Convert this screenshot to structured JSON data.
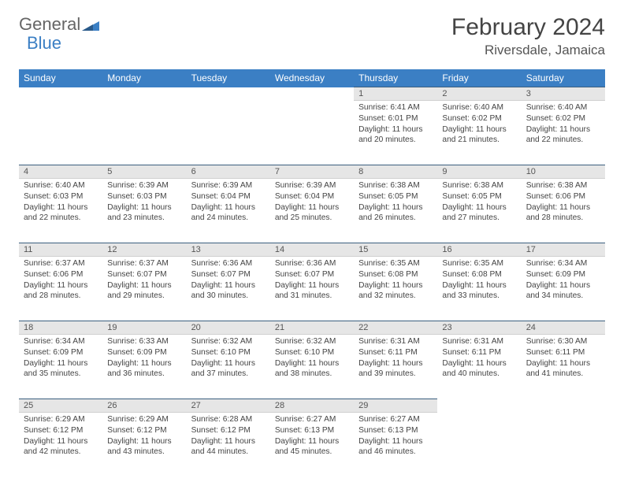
{
  "brand": {
    "name1": "General",
    "name2": "Blue"
  },
  "title": "February 2024",
  "location": "Riversdale, Jamaica",
  "colors": {
    "header_bg": "#3b7fc4",
    "daynum_bg": "#e6e6e6",
    "daynum_border_top": "#3b5f7f",
    "text": "#444444"
  },
  "daynames": [
    "Sunday",
    "Monday",
    "Tuesday",
    "Wednesday",
    "Thursday",
    "Friday",
    "Saturday"
  ],
  "weeks": [
    [
      null,
      null,
      null,
      null,
      {
        "n": "1",
        "rise": "6:41 AM",
        "set": "6:01 PM",
        "dl": "11 hours and 20 minutes."
      },
      {
        "n": "2",
        "rise": "6:40 AM",
        "set": "6:02 PM",
        "dl": "11 hours and 21 minutes."
      },
      {
        "n": "3",
        "rise": "6:40 AM",
        "set": "6:02 PM",
        "dl": "11 hours and 22 minutes."
      }
    ],
    [
      {
        "n": "4",
        "rise": "6:40 AM",
        "set": "6:03 PM",
        "dl": "11 hours and 22 minutes."
      },
      {
        "n": "5",
        "rise": "6:39 AM",
        "set": "6:03 PM",
        "dl": "11 hours and 23 minutes."
      },
      {
        "n": "6",
        "rise": "6:39 AM",
        "set": "6:04 PM",
        "dl": "11 hours and 24 minutes."
      },
      {
        "n": "7",
        "rise": "6:39 AM",
        "set": "6:04 PM",
        "dl": "11 hours and 25 minutes."
      },
      {
        "n": "8",
        "rise": "6:38 AM",
        "set": "6:05 PM",
        "dl": "11 hours and 26 minutes."
      },
      {
        "n": "9",
        "rise": "6:38 AM",
        "set": "6:05 PM",
        "dl": "11 hours and 27 minutes."
      },
      {
        "n": "10",
        "rise": "6:38 AM",
        "set": "6:06 PM",
        "dl": "11 hours and 28 minutes."
      }
    ],
    [
      {
        "n": "11",
        "rise": "6:37 AM",
        "set": "6:06 PM",
        "dl": "11 hours and 28 minutes."
      },
      {
        "n": "12",
        "rise": "6:37 AM",
        "set": "6:07 PM",
        "dl": "11 hours and 29 minutes."
      },
      {
        "n": "13",
        "rise": "6:36 AM",
        "set": "6:07 PM",
        "dl": "11 hours and 30 minutes."
      },
      {
        "n": "14",
        "rise": "6:36 AM",
        "set": "6:07 PM",
        "dl": "11 hours and 31 minutes."
      },
      {
        "n": "15",
        "rise": "6:35 AM",
        "set": "6:08 PM",
        "dl": "11 hours and 32 minutes."
      },
      {
        "n": "16",
        "rise": "6:35 AM",
        "set": "6:08 PM",
        "dl": "11 hours and 33 minutes."
      },
      {
        "n": "17",
        "rise": "6:34 AM",
        "set": "6:09 PM",
        "dl": "11 hours and 34 minutes."
      }
    ],
    [
      {
        "n": "18",
        "rise": "6:34 AM",
        "set": "6:09 PM",
        "dl": "11 hours and 35 minutes."
      },
      {
        "n": "19",
        "rise": "6:33 AM",
        "set": "6:09 PM",
        "dl": "11 hours and 36 minutes."
      },
      {
        "n": "20",
        "rise": "6:32 AM",
        "set": "6:10 PM",
        "dl": "11 hours and 37 minutes."
      },
      {
        "n": "21",
        "rise": "6:32 AM",
        "set": "6:10 PM",
        "dl": "11 hours and 38 minutes."
      },
      {
        "n": "22",
        "rise": "6:31 AM",
        "set": "6:11 PM",
        "dl": "11 hours and 39 minutes."
      },
      {
        "n": "23",
        "rise": "6:31 AM",
        "set": "6:11 PM",
        "dl": "11 hours and 40 minutes."
      },
      {
        "n": "24",
        "rise": "6:30 AM",
        "set": "6:11 PM",
        "dl": "11 hours and 41 minutes."
      }
    ],
    [
      {
        "n": "25",
        "rise": "6:29 AM",
        "set": "6:12 PM",
        "dl": "11 hours and 42 minutes."
      },
      {
        "n": "26",
        "rise": "6:29 AM",
        "set": "6:12 PM",
        "dl": "11 hours and 43 minutes."
      },
      {
        "n": "27",
        "rise": "6:28 AM",
        "set": "6:12 PM",
        "dl": "11 hours and 44 minutes."
      },
      {
        "n": "28",
        "rise": "6:27 AM",
        "set": "6:13 PM",
        "dl": "11 hours and 45 minutes."
      },
      {
        "n": "29",
        "rise": "6:27 AM",
        "set": "6:13 PM",
        "dl": "11 hours and 46 minutes."
      },
      null,
      null
    ]
  ],
  "labels": {
    "sunrise": "Sunrise: ",
    "sunset": "Sunset: ",
    "daylight": "Daylight: "
  }
}
